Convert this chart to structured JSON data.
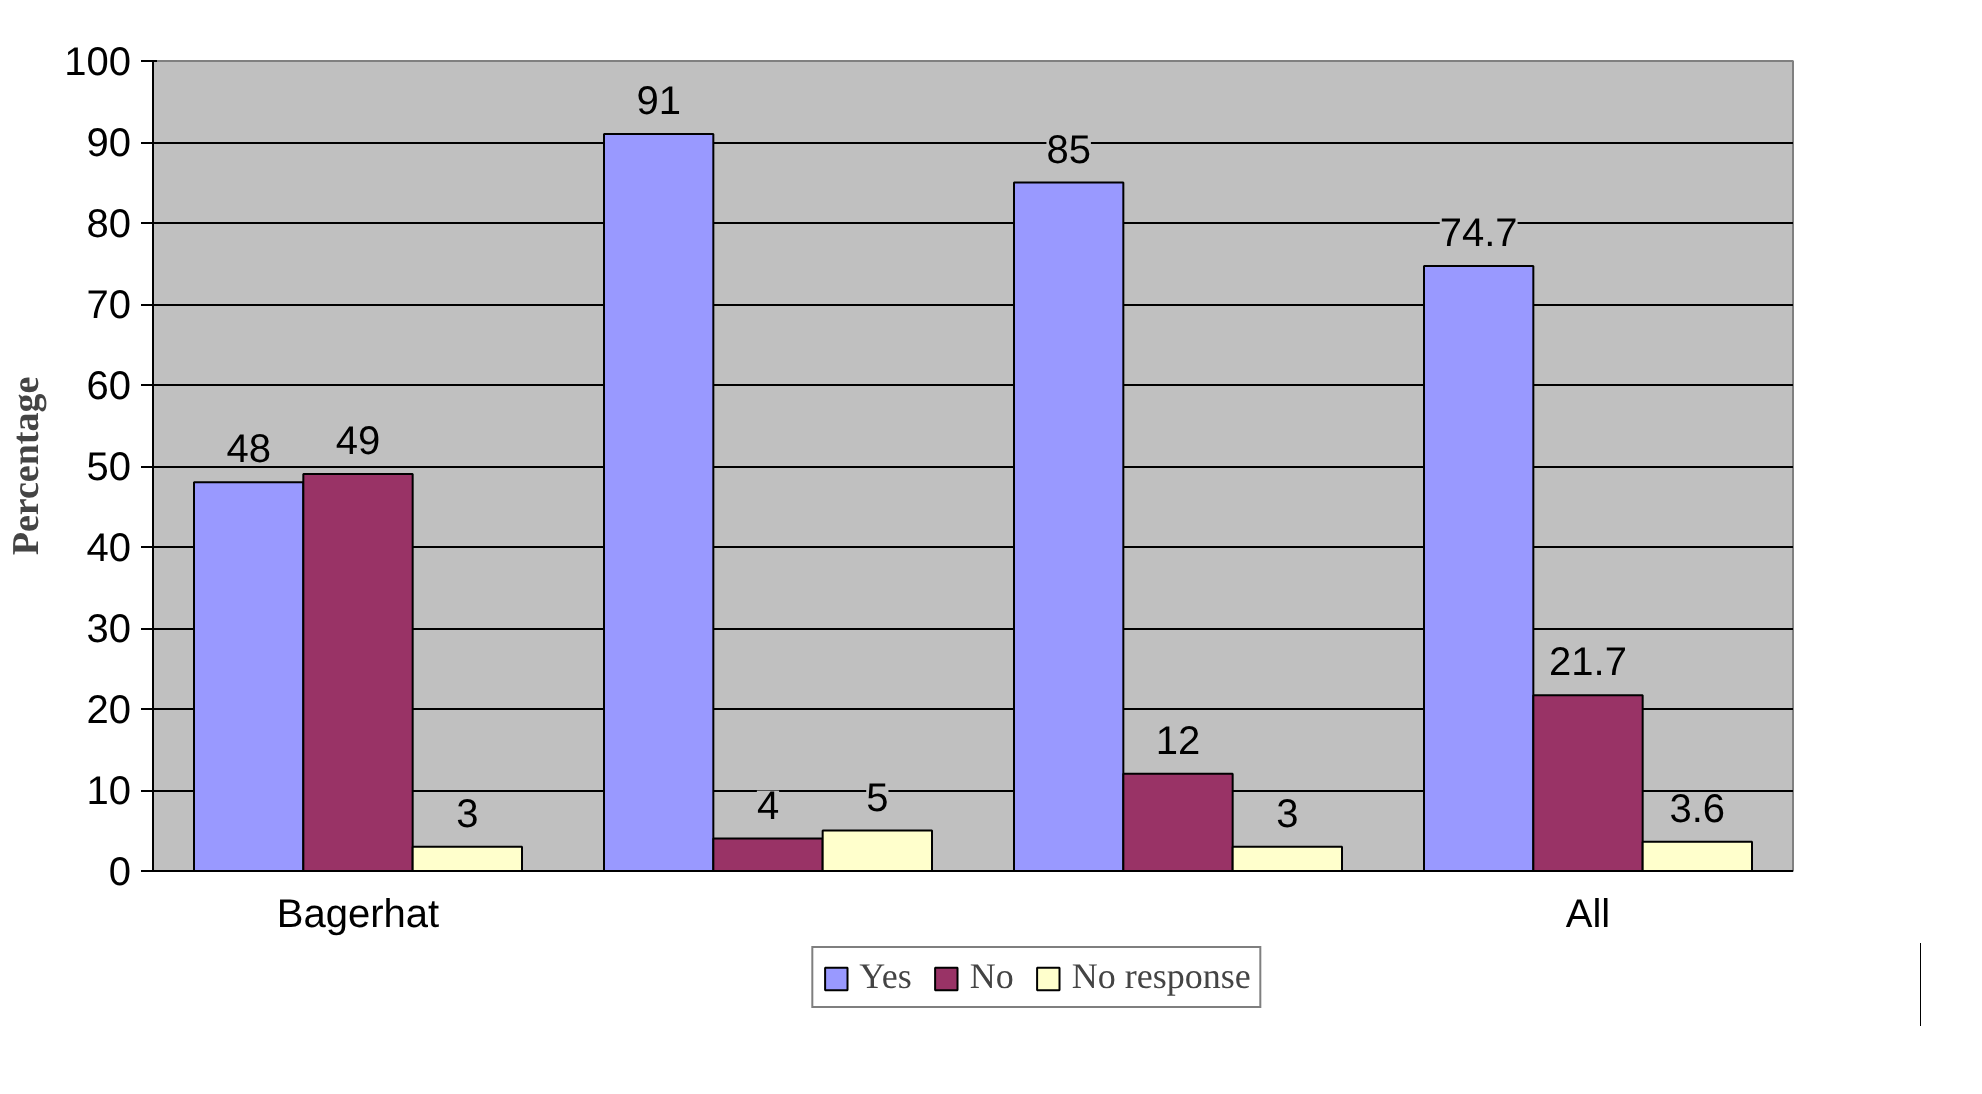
{
  "chart_data": {
    "type": "bar",
    "ylabel": "Percentage",
    "categories": [
      "Bagerhat",
      null,
      null,
      "All"
    ],
    "series": [
      {
        "name": "Yes",
        "color": "#9999ff",
        "values": [
          48,
          91,
          85,
          74.7
        ]
      },
      {
        "name": "No",
        "color": "#993366",
        "values": [
          49,
          4,
          12,
          21.7
        ]
      },
      {
        "name": "No response",
        "color": "#ffffcc",
        "values": [
          3,
          5,
          3,
          3.6
        ]
      }
    ],
    "ylim": [
      0,
      100
    ],
    "yticks": [
      0,
      10,
      20,
      30,
      40,
      50,
      60,
      70,
      80,
      90,
      100
    ],
    "grid": "y",
    "legend": "bottom",
    "data_labels": true
  }
}
